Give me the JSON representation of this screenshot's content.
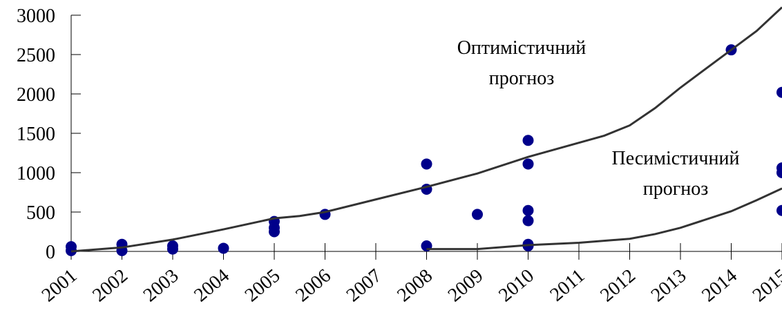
{
  "chart_data": {
    "type": "scatter",
    "xlim": [
      2001,
      2015
    ],
    "xticks": [
      2001,
      2002,
      2003,
      2004,
      2005,
      2006,
      2007,
      2008,
      2009,
      2010,
      2011,
      2012,
      2013,
      2014,
      2015
    ],
    "ylim": [
      0,
      3000
    ],
    "yticks": [
      0,
      500,
      1000,
      1500,
      2000,
      2500,
      3000
    ],
    "annotations": [
      "Оптимістичний",
      "прогноз",
      "Песимістичний",
      "прогноз"
    ],
    "series": [
      {
        "type": "scatter",
        "color": "#00008b",
        "x": [
          2001,
          2001,
          2002,
          2002,
          2003,
          2003,
          2004,
          2005,
          2005,
          2005,
          2006,
          2008,
          2008,
          2008,
          2009,
          2010,
          2010,
          2010,
          2010,
          2010,
          2010,
          2014,
          2015,
          2015,
          2015,
          2015
        ],
        "values": [
          60,
          10,
          90,
          10,
          70,
          30,
          40,
          380,
          300,
          250,
          470,
          1110,
          790,
          70,
          470,
          1410,
          1110,
          520,
          390,
          90,
          70,
          2560,
          2020,
          1060,
          1000,
          520
        ]
      },
      {
        "type": "line",
        "color": "#333333",
        "x": [
          2001,
          2002,
          2003,
          2004,
          2005,
          2005.5,
          2006,
          2007,
          2008,
          2009,
          2010,
          2011,
          2011.5,
          2012,
          2012.5,
          2013,
          2014,
          2014.5,
          2015
        ],
        "values": [
          0,
          50,
          150,
          280,
          420,
          450,
          500,
          660,
          820,
          990,
          1200,
          1380,
          1470,
          1600,
          1820,
          2080,
          2560,
          2800,
          3100
        ]
      },
      {
        "type": "line",
        "color": "#333333",
        "x": [
          2008,
          2009,
          2010,
          2011,
          2012,
          2012.5,
          2013,
          2014,
          2014.5,
          2015
        ],
        "values": [
          30,
          30,
          80,
          110,
          160,
          220,
          300,
          510,
          650,
          800
        ]
      }
    ]
  }
}
